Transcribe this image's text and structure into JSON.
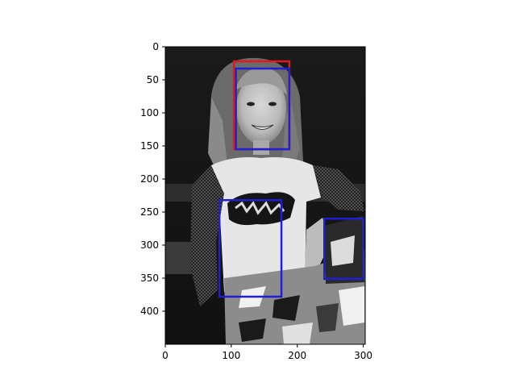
{
  "chart_data": {
    "type": "image_with_boxes",
    "image": "grayscale photo of a smiling young woman with long hair in a white graphic t-shirt, fishnet sleeves and camouflage pants",
    "xlim": [
      0,
      303
    ],
    "ylim": [
      450,
      0
    ],
    "xticks": [
      0,
      100,
      200,
      300
    ],
    "yticks": [
      0,
      50,
      100,
      150,
      200,
      250,
      300,
      350,
      400
    ],
    "boxes": [
      {
        "label": "red-box",
        "color": "#e31a1c",
        "x0": 104,
        "y0": 22,
        "x1": 188,
        "y1": 155
      },
      {
        "label": "blue-box",
        "color": "#1f1fd6",
        "x0": 107,
        "y0": 33,
        "x1": 188,
        "y1": 155
      },
      {
        "label": "blue-box",
        "color": "#1f1fd6",
        "x0": 82,
        "y0": 232,
        "x1": 176,
        "y1": 378
      },
      {
        "label": "blue-box",
        "color": "#1f1fd6",
        "x0": 241,
        "y0": 260,
        "x1": 300,
        "y1": 351
      }
    ]
  }
}
